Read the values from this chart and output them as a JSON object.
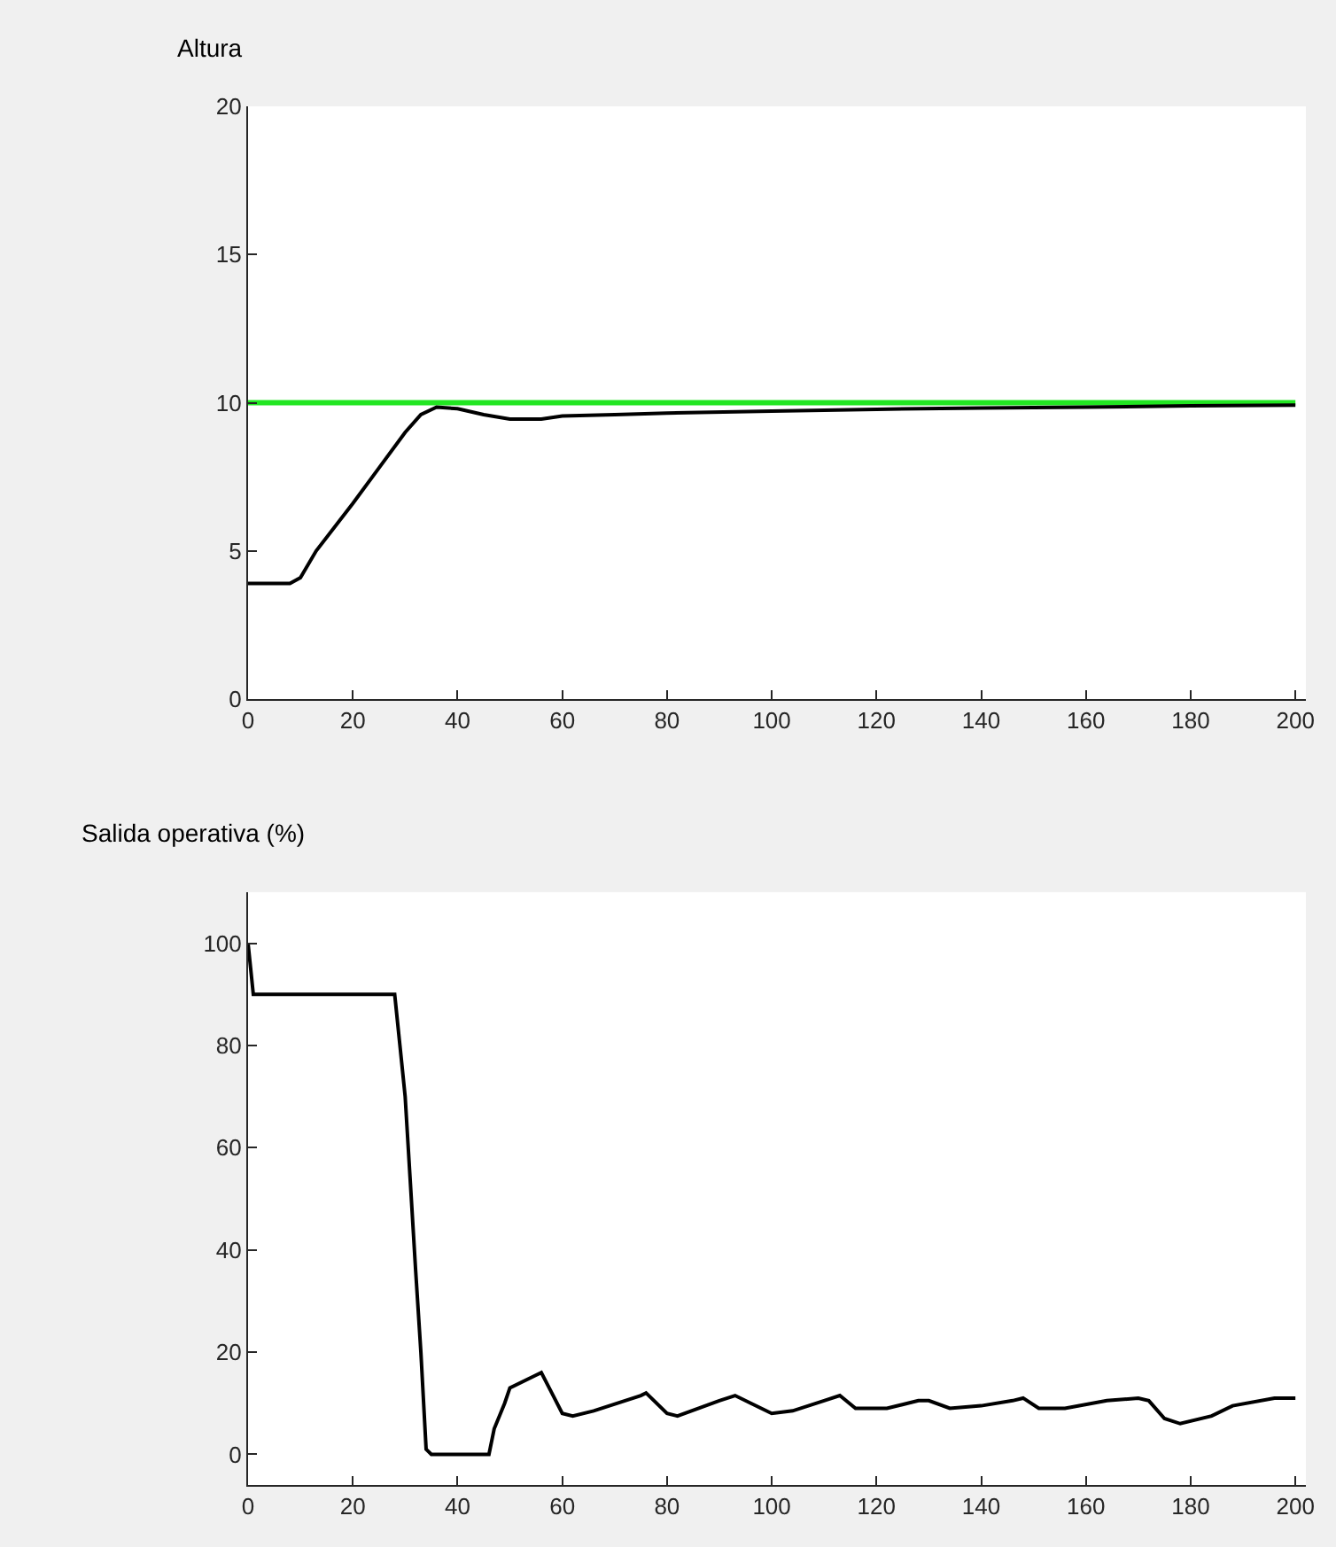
{
  "chart_data": [
    {
      "type": "line",
      "title": "Altura",
      "xlim": [
        0,
        202
      ],
      "xticks": [
        0,
        20,
        40,
        60,
        80,
        100,
        120,
        140,
        160,
        180,
        200
      ],
      "ylim": [
        0,
        20
      ],
      "yticks": [
        0,
        5,
        10,
        15,
        20
      ],
      "marker": "none",
      "line_style": "solid",
      "series": [
        {
          "color": "#22e622",
          "x": [
            0,
            200
          ],
          "values": [
            10,
            10
          ]
        },
        {
          "color": "#000000",
          "x": [
            0,
            8,
            10,
            13,
            20,
            25,
            30,
            33,
            36,
            40,
            45,
            50,
            56,
            60,
            70,
            80,
            100,
            120,
            140,
            160,
            180,
            200
          ],
          "values": [
            3.9,
            3.9,
            4.1,
            5,
            6.6,
            7.8,
            9,
            9.6,
            9.85,
            9.8,
            9.6,
            9.45,
            9.45,
            9.55,
            9.6,
            9.65,
            9.72,
            9.78,
            9.82,
            9.85,
            9.9,
            9.92
          ]
        }
      ]
    },
    {
      "type": "line",
      "title": "Salida operativa (%)",
      "xlim": [
        0,
        202
      ],
      "xticks": [
        0,
        20,
        40,
        60,
        80,
        100,
        120,
        140,
        160,
        180,
        200
      ],
      "ylim": [
        -6,
        110
      ],
      "yticks": [
        0,
        20,
        40,
        60,
        80,
        100
      ],
      "marker": "none",
      "line_style": "solid",
      "series": [
        {
          "color": "#000000",
          "x": [
            0,
            1,
            28,
            29,
            30,
            31,
            32,
            33,
            34,
            35,
            46,
            47,
            49,
            50,
            55,
            56,
            58,
            60,
            62,
            66,
            75,
            76,
            80,
            82,
            90,
            93,
            96,
            100,
            104,
            110,
            113,
            116,
            122,
            128,
            130,
            134,
            140,
            146,
            148,
            151,
            156,
            164,
            170,
            172,
            175,
            178,
            184,
            188,
            196,
            200
          ],
          "values": [
            100,
            90,
            90,
            80,
            70,
            53,
            36,
            20,
            1,
            0,
            0,
            5,
            10,
            13,
            15.5,
            16,
            12,
            8,
            7.5,
            8.5,
            11.5,
            12,
            8,
            7.5,
            10.5,
            11.5,
            10,
            8,
            8.5,
            10.5,
            11.5,
            9,
            9,
            10.5,
            10.5,
            9,
            9.5,
            10.5,
            11,
            9,
            9,
            10.5,
            11,
            10.5,
            7,
            6,
            7.5,
            9.5,
            11,
            11
          ]
        }
      ]
    }
  ]
}
